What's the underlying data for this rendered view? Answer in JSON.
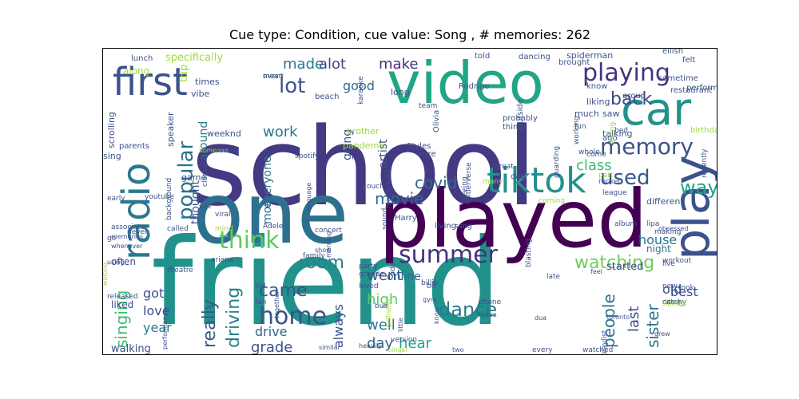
{
  "title": "Cue type: Condition, cue value: Song , # memories: 262",
  "words": [
    {
      "text": "friend",
      "size": 150,
      "color": "#21918c",
      "rot": 0
    },
    {
      "text": "school",
      "size": 135,
      "color": "#443983",
      "rot": 0
    },
    {
      "text": "one",
      "size": 105,
      "color": "#2d708e",
      "rot": 0
    },
    {
      "text": "played",
      "size": 100,
      "color": "#440154",
      "rot": 0
    },
    {
      "text": "video",
      "size": 72,
      "color": "#21a685",
      "rot": 0
    },
    {
      "text": "car",
      "size": 56,
      "color": "#21918c",
      "rot": 0
    },
    {
      "text": "play",
      "size": 62,
      "color": "#3b528b",
      "rot": 90
    },
    {
      "text": "first",
      "size": 48,
      "color": "#3b528b",
      "rot": 0
    },
    {
      "text": "radio",
      "size": 48,
      "color": "#2a788e",
      "rot": 90
    },
    {
      "text": "tiktok",
      "size": 44,
      "color": "#21918c",
      "rot": 0
    },
    {
      "text": "playing",
      "size": 30,
      "color": "#46327e",
      "rot": 0
    },
    {
      "text": "memory",
      "size": 28,
      "color": "#3b528b",
      "rot": 0
    },
    {
      "text": "summer",
      "size": 30,
      "color": "#46327e",
      "rot": 0
    },
    {
      "text": "home",
      "size": 30,
      "color": "#3b528b",
      "rot": 0
    },
    {
      "text": "think",
      "size": 30,
      "color": "#5ec962",
      "rot": 0
    },
    {
      "text": "popular",
      "size": 26,
      "color": "#2c728e",
      "rot": 90
    },
    {
      "text": "used",
      "size": 26,
      "color": "#38598c",
      "rot": 0
    },
    {
      "text": "way",
      "size": 24,
      "color": "#20a486",
      "rot": 0
    },
    {
      "text": "back",
      "size": 22,
      "color": "#3e4989",
      "rot": 0
    },
    {
      "text": "watching",
      "size": 22,
      "color": "#6ece58",
      "rot": 0
    },
    {
      "text": "dance",
      "size": 24,
      "color": "#2a788e",
      "rot": 0
    },
    {
      "text": "came",
      "size": 22,
      "color": "#3b528b",
      "rot": 0
    },
    {
      "text": "lot",
      "size": 26,
      "color": "#3b528b",
      "rot": 0
    },
    {
      "text": "made",
      "size": 18,
      "color": "#2a788e",
      "rot": 0
    },
    {
      "text": "alot",
      "size": 18,
      "color": "#3e4989",
      "rot": 0
    },
    {
      "text": "make",
      "size": 18,
      "color": "#472c7a",
      "rot": 0
    },
    {
      "text": "work",
      "size": 18,
      "color": "#2a788e",
      "rot": 0
    },
    {
      "text": "covid",
      "size": 20,
      "color": "#31688e",
      "rot": 0
    },
    {
      "text": "movie",
      "size": 20,
      "color": "#31688e",
      "rot": 0
    },
    {
      "text": "room",
      "size": 22,
      "color": "#26828e",
      "rot": 0
    },
    {
      "text": "really",
      "size": 22,
      "color": "#38598c",
      "rot": 90
    },
    {
      "text": "driving",
      "size": 22,
      "color": "#277f8e",
      "rot": 90
    },
    {
      "text": "singing",
      "size": 20,
      "color": "#3dbc74",
      "rot": 90
    },
    {
      "text": "class",
      "size": 18,
      "color": "#3dbc74",
      "rot": 0
    },
    {
      "text": "people",
      "size": 20,
      "color": "#2c728e",
      "rot": 90
    },
    {
      "text": "hear",
      "size": 18,
      "color": "#20a486",
      "rot": 0
    },
    {
      "text": "house",
      "size": 16,
      "color": "#2c728e",
      "rot": 0
    },
    {
      "text": "sister",
      "size": 20,
      "color": "#2c728e",
      "rot": 90
    },
    {
      "text": "best",
      "size": 16,
      "color": "#3e4989",
      "rot": 0
    },
    {
      "text": "went",
      "size": 18,
      "color": "#3b528b",
      "rot": 0
    },
    {
      "text": "high",
      "size": 18,
      "color": "#5ec962",
      "rot": 0
    },
    {
      "text": "well",
      "size": 18,
      "color": "#2a788e",
      "rot": 0
    },
    {
      "text": "day",
      "size": 18,
      "color": "#31688e",
      "rot": 0
    },
    {
      "text": "always",
      "size": 16,
      "color": "#3b528b",
      "rot": 90
    },
    {
      "text": "drive",
      "size": 16,
      "color": "#31688e",
      "rot": 0
    },
    {
      "text": "grade",
      "size": 18,
      "color": "#3b528b",
      "rot": 0
    },
    {
      "text": "got",
      "size": 16,
      "color": "#3b528b",
      "rot": 0
    },
    {
      "text": "love",
      "size": 16,
      "color": "#3b528b",
      "rot": 0
    },
    {
      "text": "year",
      "size": 16,
      "color": "#2a788e",
      "rot": 0
    },
    {
      "text": "last",
      "size": 18,
      "color": "#3e4989",
      "rot": 90
    },
    {
      "text": "started",
      "size": 13,
      "color": "#3e4989",
      "rot": 0
    },
    {
      "text": "old",
      "size": 16,
      "color": "#3b528b",
      "rot": 0
    },
    {
      "text": "good",
      "size": 16,
      "color": "#31688e",
      "rot": 0
    },
    {
      "text": "going",
      "size": 14,
      "color": "#3b528b",
      "rot": 90
    },
    {
      "text": "artist",
      "size": 14,
      "color": "#3b528b",
      "rot": 90
    },
    {
      "text": "around",
      "size": 14,
      "color": "#2a788e",
      "rot": 90
    },
    {
      "text": "thought",
      "size": 14,
      "color": "#3b528b",
      "rot": 90
    },
    {
      "text": "everyone",
      "size": 14,
      "color": "#2c728e",
      "rot": 90
    },
    {
      "text": "mom",
      "size": 14,
      "color": "#31688e",
      "rot": 90
    },
    {
      "text": "online",
      "size": 14,
      "color": "#31688e",
      "rot": 0
    },
    {
      "text": "walking",
      "size": 13,
      "color": "#3b528b",
      "rot": 0
    },
    {
      "text": "often",
      "size": 12,
      "color": "#3b528b",
      "rot": 0
    },
    {
      "text": "liked",
      "size": 12,
      "color": "#3e4989",
      "rot": 0
    },
    {
      "text": "night",
      "size": 12,
      "color": "#2c728e",
      "rot": 0
    },
    {
      "text": "different",
      "size": 11,
      "color": "#3b528b",
      "rot": 0
    },
    {
      "text": "specifically",
      "size": 13,
      "color": "#9fda3a",
      "rot": 0
    },
    {
      "text": "trip",
      "size": 13,
      "color": "#9fda3a",
      "rot": 90
    },
    {
      "text": "along",
      "size": 12,
      "color": "#9fda3a",
      "rot": 0
    },
    {
      "text": "vibe",
      "size": 11,
      "color": "#3b528b",
      "rot": 0
    },
    {
      "text": "times",
      "size": 11,
      "color": "#3b528b",
      "rot": 0
    },
    {
      "text": "weeknd",
      "size": 11,
      "color": "#3b528b",
      "rot": 0
    },
    {
      "text": "speaker",
      "size": 11,
      "color": "#3b528b",
      "rot": 90
    },
    {
      "text": "brother",
      "size": 11,
      "color": "#9fda3a",
      "rot": 0
    },
    {
      "text": "pandemic",
      "size": 11,
      "color": "#9fda3a",
      "rot": 0
    },
    {
      "text": "game",
      "size": 11,
      "color": "#3b528b",
      "rot": 0
    },
    {
      "text": "sing",
      "size": 11,
      "color": "#3b528b",
      "rot": 0
    },
    {
      "text": "parents",
      "size": 10,
      "color": "#3b528b",
      "rot": 0
    },
    {
      "text": "scrolling",
      "size": 11,
      "color": "#3b528b",
      "rot": 90
    },
    {
      "text": "lunch",
      "size": 10,
      "color": "#3b528b",
      "rot": 0
    },
    {
      "text": "event",
      "size": 9,
      "color": "#3b528b",
      "rot": 0
    },
    {
      "text": "mean",
      "size": 9,
      "color": "#3b528b",
      "rot": 0
    },
    {
      "text": "karaoke",
      "size": 9,
      "color": "#3b528b",
      "rot": 90
    },
    {
      "text": "long",
      "size": 11,
      "color": "#3b528b",
      "rot": 0
    },
    {
      "text": "beach",
      "size": 10,
      "color": "#3b528b",
      "rot": 0
    },
    {
      "text": "team",
      "size": 9,
      "color": "#3b528b",
      "rot": 0
    },
    {
      "text": "sure",
      "size": 10,
      "color": "#3b528b",
      "rot": 0
    },
    {
      "text": "Olivia",
      "size": 10,
      "color": "#3b528b",
      "rot": 90
    },
    {
      "text": "thing",
      "size": 10,
      "color": "#3b528b",
      "rot": 0
    },
    {
      "text": "outside",
      "size": 10,
      "color": "#3b528b",
      "rot": 90
    },
    {
      "text": "Styles",
      "size": 10,
      "color": "#3b528b",
      "rot": 0
    },
    {
      "text": "Harry",
      "size": 10,
      "color": "#3b528b",
      "rot": 0
    },
    {
      "text": "coming",
      "size": 9,
      "color": "#9fda3a",
      "rot": 0
    },
    {
      "text": "guarding",
      "size": 9,
      "color": "#3b528b",
      "rot": 90
    },
    {
      "text": "dad",
      "size": 10,
      "color": "#3b528b",
      "rot": 0
    },
    {
      "text": "dancing",
      "size": 10,
      "color": "#3b528b",
      "rot": 0
    },
    {
      "text": "told",
      "size": 10,
      "color": "#3b528b",
      "rot": 0
    },
    {
      "text": "spiderman",
      "size": 11,
      "color": "#3b528b",
      "rot": 0
    },
    {
      "text": "brought",
      "size": 10,
      "color": "#3b528b",
      "rot": 0
    },
    {
      "text": "know",
      "size": 10,
      "color": "#3b528b",
      "rot": 0
    },
    {
      "text": "liking",
      "size": 11,
      "color": "#3b528b",
      "rot": 0
    },
    {
      "text": "much",
      "size": 11,
      "color": "#3b528b",
      "rot": 0
    },
    {
      "text": "saw",
      "size": 11,
      "color": "#3b528b",
      "rot": 0
    },
    {
      "text": "talking",
      "size": 11,
      "color": "#3b528b",
      "rot": 0
    },
    {
      "text": "ago",
      "size": 10,
      "color": "#3b528b",
      "rot": 0
    },
    {
      "text": "eilish",
      "size": 10,
      "color": "#3b528b",
      "rot": 0
    },
    {
      "text": "felt",
      "size": 10,
      "color": "#3b528b",
      "rot": 0
    },
    {
      "text": "sometime",
      "size": 10,
      "color": "#3b528b",
      "rot": 0
    },
    {
      "text": "restaurant",
      "size": 10,
      "color": "#3b528b",
      "rot": 0
    },
    {
      "text": "performed",
      "size": 10,
      "color": "#3b528b",
      "rot": 0
    },
    {
      "text": "birthday",
      "size": 10,
      "color": "#9fda3a",
      "rot": 0
    },
    {
      "text": "group",
      "size": 10,
      "color": "#3b528b",
      "rot": 0
    },
    {
      "text": "Rodrigo",
      "size": 10,
      "color": "#3b528b",
      "rot": 0
    },
    {
      "text": "probably",
      "size": 10,
      "color": "#3b528b",
      "rot": 0
    },
    {
      "text": "come",
      "size": 9,
      "color": "#3b528b",
      "rot": 0
    },
    {
      "text": "whole",
      "size": 9,
      "color": "#3b528b",
      "rot": 0
    },
    {
      "text": "fun",
      "size": 9,
      "color": "#3b528b",
      "rot": 0
    },
    {
      "text": "working",
      "size": 9,
      "color": "#3b528b",
      "rot": 90
    },
    {
      "text": "sitting",
      "size": 9,
      "color": "#9fda3a",
      "rot": 90
    },
    {
      "text": "bed",
      "size": 9,
      "color": "#3b528b",
      "rot": 0
    },
    {
      "text": "someone",
      "size": 8,
      "color": "#9fda3a",
      "rot": 0
    },
    {
      "text": "costco",
      "size": 9,
      "color": "#3b528b",
      "rot": 0
    },
    {
      "text": "spotify",
      "size": 9,
      "color": "#3b528b",
      "rot": 0
    },
    {
      "text": "great",
      "size": 9,
      "color": "#3b528b",
      "rot": 0
    },
    {
      "text": "many",
      "size": 9,
      "color": "#9fda3a",
      "rot": 0
    },
    {
      "text": "part",
      "size": 9,
      "color": "#9fda3a",
      "rot": 0
    },
    {
      "text": "rocket",
      "size": 9,
      "color": "#3b528b",
      "rot": 0
    },
    {
      "text": "league",
      "size": 9,
      "color": "#3b528b",
      "rot": 0
    },
    {
      "text": "early",
      "size": 9,
      "color": "#3b528b",
      "rot": 0
    },
    {
      "text": "youtube",
      "size": 9,
      "color": "#3b528b",
      "rot": 0
    },
    {
      "text": "classes",
      "size": 9,
      "color": "#3b528b",
      "rot": 90
    },
    {
      "text": "see",
      "size": 9,
      "color": "#3b528b",
      "rot": 0
    },
    {
      "text": "viral",
      "size": 9,
      "color": "#3b528b",
      "rot": 0
    },
    {
      "text": "Adele",
      "size": 9,
      "color": "#3b528b",
      "rot": 0
    },
    {
      "text": "language",
      "size": 8,
      "color": "#3b528b",
      "rot": 90
    },
    {
      "text": "couch",
      "size": 9,
      "color": "#3b528b",
      "rot": 0
    },
    {
      "text": "highschool",
      "size": 9,
      "color": "#3b528b",
      "rot": 90
    },
    {
      "text": "living",
      "size": 10,
      "color": "#3b528b",
      "rot": 0
    },
    {
      "text": "sang",
      "size": 9,
      "color": "#3b528b",
      "rot": 0
    },
    {
      "text": "spiderverse",
      "size": 9,
      "color": "#3b528b",
      "rot": 90
    },
    {
      "text": "seeing",
      "size": 9,
      "color": "#3b528b",
      "rot": 90
    },
    {
      "text": "recently",
      "size": 9,
      "color": "#3b528b",
      "rot": 90
    },
    {
      "text": "never",
      "size": 9,
      "color": "#3b528b",
      "rot": 0
    },
    {
      "text": "go",
      "size": 9,
      "color": "#3b528b",
      "rot": 0
    },
    {
      "text": "using",
      "size": 8,
      "color": "#3b528b",
      "rot": 0
    },
    {
      "text": "background",
      "size": 9,
      "color": "#3b528b",
      "rot": 90
    },
    {
      "text": "called",
      "size": 9,
      "color": "#3b528b",
      "rot": 0
    },
    {
      "text": "mind",
      "size": 9,
      "color": "#9fda3a",
      "rot": 0
    },
    {
      "text": "sound",
      "size": 9,
      "color": "#3b528b",
      "rot": 90
    },
    {
      "text": "concert",
      "size": 9,
      "color": "#3b528b",
      "rot": 0
    },
    {
      "text": "show",
      "size": 8,
      "color": "#3b528b",
      "rot": 0
    },
    {
      "text": "morning",
      "size": 8,
      "color": "#3b528b",
      "rot": 90
    },
    {
      "text": "theatre",
      "size": 9,
      "color": "#3b528b",
      "rot": 0
    },
    {
      "text": "family",
      "size": 9,
      "color": "#3b528b",
      "rot": 0
    },
    {
      "text": "grande",
      "size": 9,
      "color": "#3b528b",
      "rot": 0
    },
    {
      "text": "ariana",
      "size": 9,
      "color": "#3b528b",
      "rot": 0
    },
    {
      "text": "party",
      "size": 9,
      "color": "#3b528b",
      "rot": 0
    },
    {
      "text": "ride",
      "size": 9,
      "color": "#3b528b",
      "rot": 90
    },
    {
      "text": "billie",
      "size": 9,
      "color": "#3b528b",
      "rot": 0
    },
    {
      "text": "obsessed",
      "size": 8,
      "color": "#3b528b",
      "rot": 0
    },
    {
      "text": "live",
      "size": 9,
      "color": "#3b528b",
      "rot": 0
    },
    {
      "text": "album",
      "size": 9,
      "color": "#3b528b",
      "rot": 0
    },
    {
      "text": "lipa",
      "size": 9,
      "color": "#3b528b",
      "rot": 0
    },
    {
      "text": "riding",
      "size": 8,
      "color": "#3b528b",
      "rot": 0
    },
    {
      "text": "blasting",
      "size": 9,
      "color": "#3b528b",
      "rot": 90
    },
    {
      "text": "loved",
      "size": 9,
      "color": "#3b528b",
      "rot": 0
    },
    {
      "text": "late",
      "size": 9,
      "color": "#3b528b",
      "rot": 0
    },
    {
      "text": "took",
      "size": 9,
      "color": "#3b528b",
      "rot": 0
    },
    {
      "text": "waiting",
      "size": 8,
      "color": "#9fda3a",
      "rot": 90
    },
    {
      "text": "kid",
      "size": 9,
      "color": "#3b528b",
      "rot": 0
    },
    {
      "text": "bus",
      "size": 9,
      "color": "#3b528b",
      "rot": 0
    },
    {
      "text": "catchy",
      "size": 9,
      "color": "#3b528b",
      "rot": 0
    },
    {
      "text": "together",
      "size": 8,
      "color": "#3b528b",
      "rot": 90
    },
    {
      "text": "bit",
      "size": 9,
      "color": "#3b528b",
      "rot": 0
    },
    {
      "text": "phone",
      "size": 9,
      "color": "#3b528b",
      "rot": 0
    },
    {
      "text": "workout",
      "size": 9,
      "color": "#3b528b",
      "rot": 0
    },
    {
      "text": "siblings",
      "size": 8,
      "color": "#9fda3a",
      "rot": 0
    },
    {
      "text": "released",
      "size": 9,
      "color": "#3b528b",
      "rot": 0
    },
    {
      "text": "fan",
      "size": 9,
      "color": "#3b528b",
      "rot": 0
    },
    {
      "text": "hours",
      "size": 8,
      "color": "#3b528b",
      "rot": 0
    },
    {
      "text": "new",
      "size": 9,
      "color": "#3b528b",
      "rot": 0
    },
    {
      "text": "making",
      "size": 9,
      "color": "#3b528b",
      "rot": 0
    },
    {
      "text": "feel",
      "size": 8,
      "color": "#3b528b",
      "rot": 0
    },
    {
      "text": "little",
      "size": 8,
      "color": "#3b528b",
      "rot": 90
    },
    {
      "text": "gym",
      "size": 8,
      "color": "#3b528b",
      "rot": 0
    },
    {
      "text": "know",
      "size": 8,
      "color": "#3b528b",
      "rot": 90
    },
    {
      "text": "girlfriend",
      "size": 8,
      "color": "#9fda3a",
      "rot": 90
    },
    {
      "text": "dua",
      "size": 8,
      "color": "#3b528b",
      "rot": 0
    },
    {
      "text": "toronto",
      "size": 8,
      "color": "#3b528b",
      "rot": 0
    },
    {
      "text": "grew",
      "size": 8,
      "color": "#3b528b",
      "rot": 0
    },
    {
      "text": "playlist",
      "size": 9,
      "color": "#3b528b",
      "rot": 90
    },
    {
      "text": "performance",
      "size": 8,
      "color": "#3b528b",
      "rot": 90
    },
    {
      "text": "similar",
      "size": 8,
      "color": "#3b528b",
      "rot": 0
    },
    {
      "text": "version",
      "size": 9,
      "color": "#3b528b",
      "rot": 0
    },
    {
      "text": "heavily",
      "size": 8,
      "color": "#3b528b",
      "rot": 0
    },
    {
      "text": "singer",
      "size": 8,
      "color": "#9fda3a",
      "rot": 0
    },
    {
      "text": "two",
      "size": 8,
      "color": "#3b528b",
      "rot": 0
    },
    {
      "text": "every",
      "size": 9,
      "color": "#3b528b",
      "rot": 0
    },
    {
      "text": "watched",
      "size": 9,
      "color": "#3b528b",
      "rot": 0
    },
    {
      "text": "associate",
      "size": 9,
      "color": "#3b528b",
      "rot": 0
    },
    {
      "text": "memories",
      "size": 8,
      "color": "#3b528b",
      "rot": 0
    },
    {
      "text": "whenever",
      "size": 8,
      "color": "#3b528b",
      "rot": 0
    }
  ]
}
